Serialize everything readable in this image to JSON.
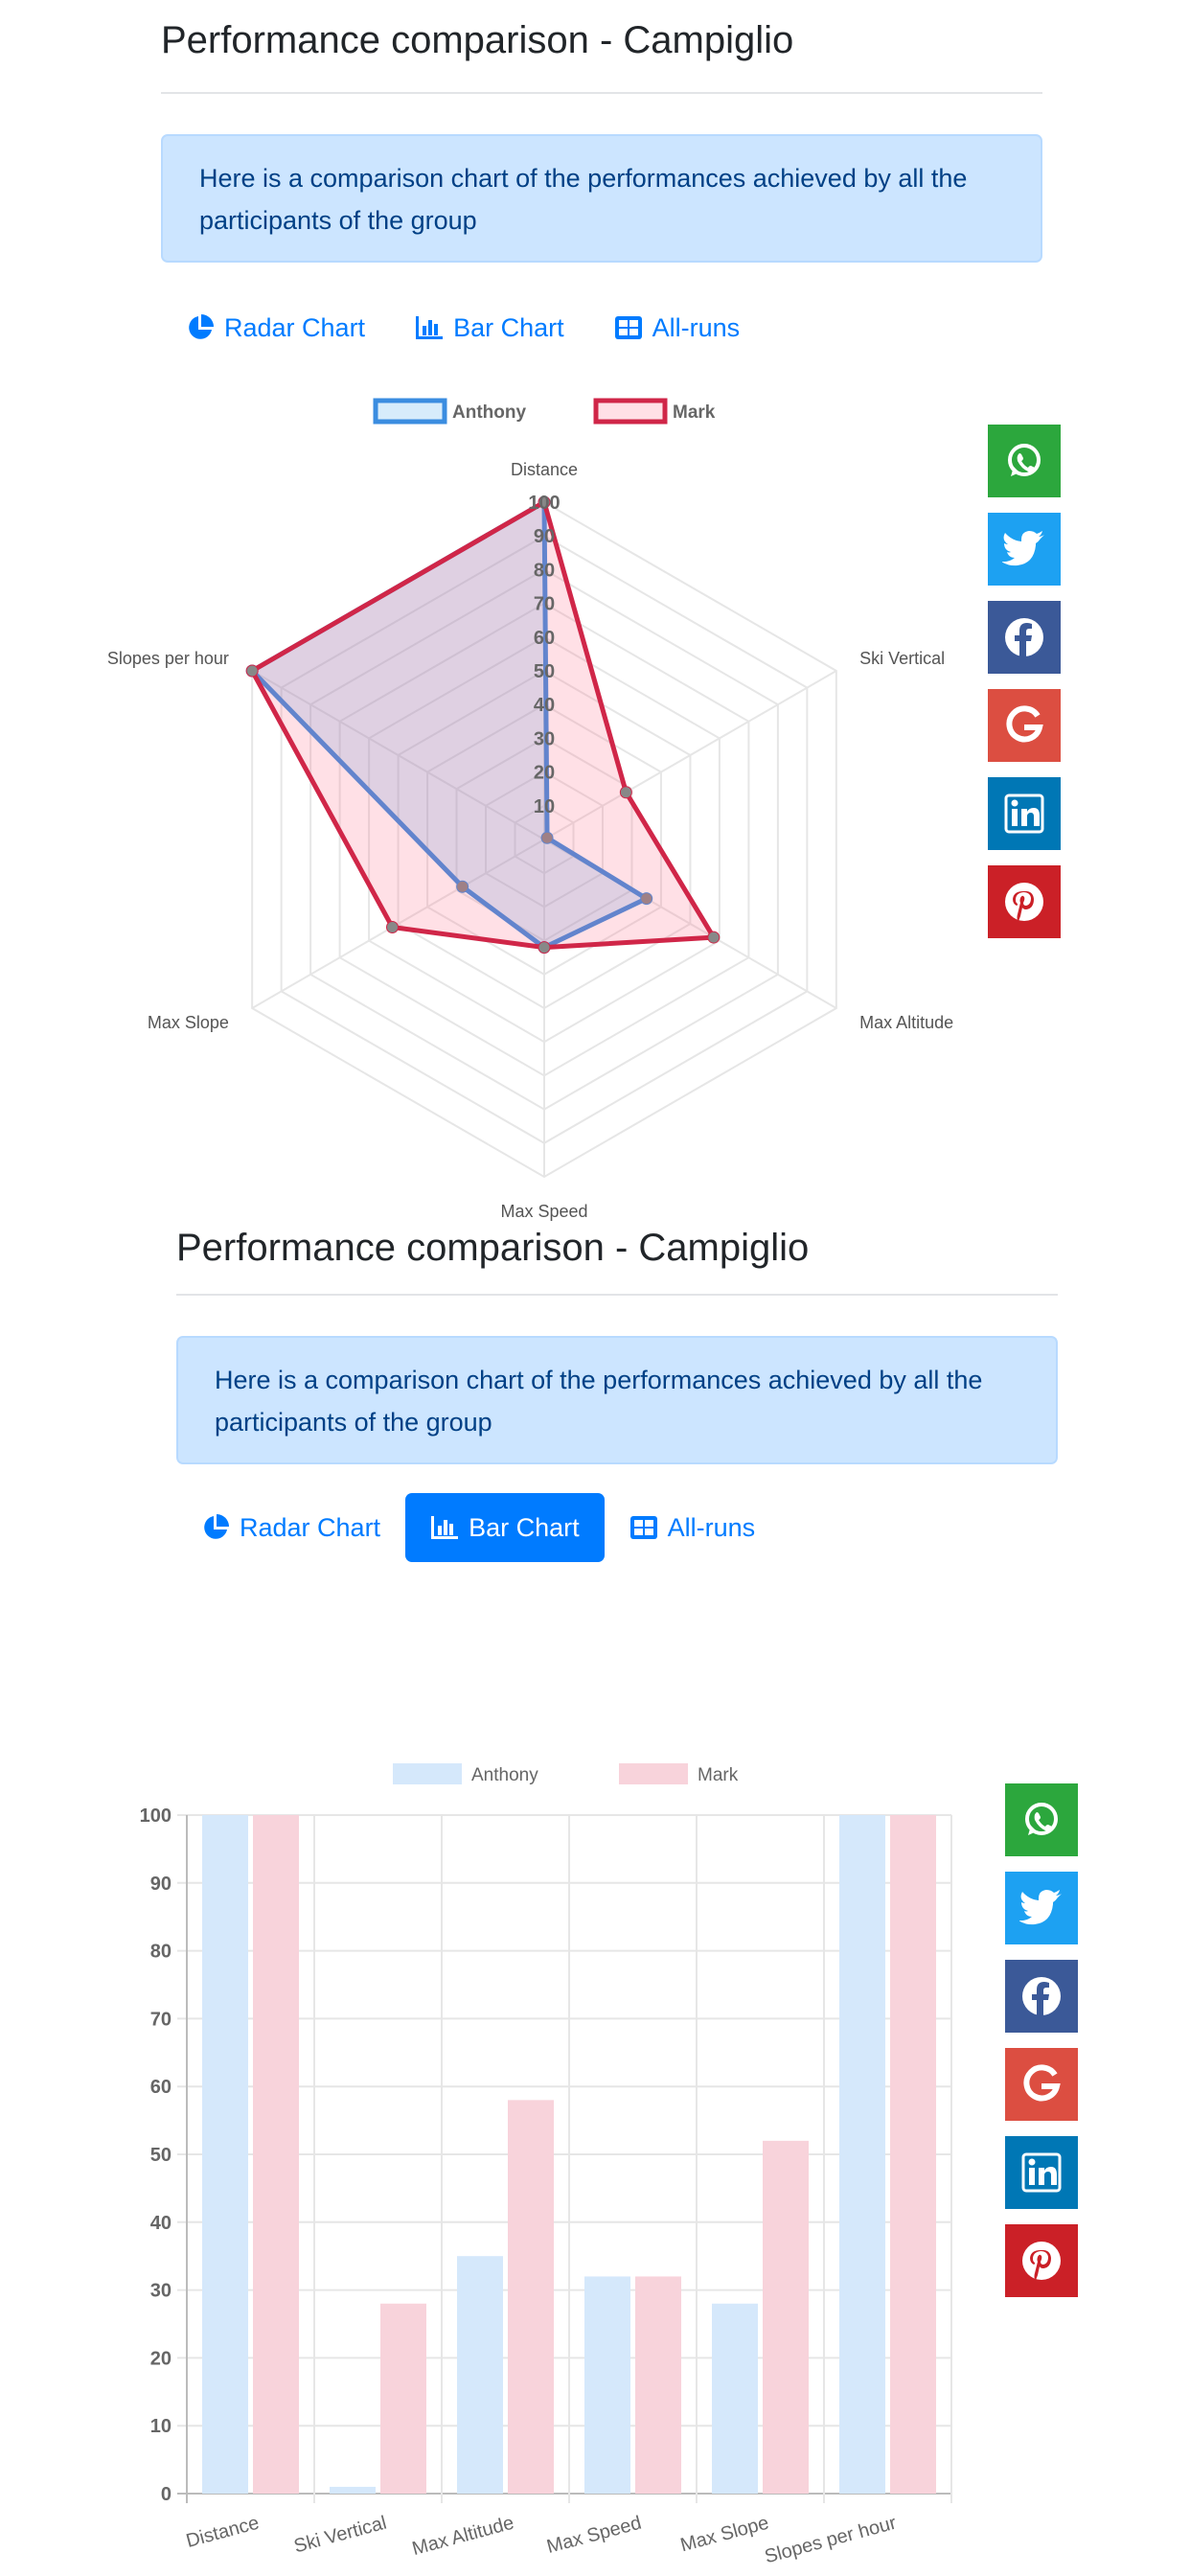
{
  "sections": [
    {
      "title": "Performance comparison - Campiglio",
      "info_text": "Here is a comparison chart of the performances achieved by all the participants of the group",
      "tabs": [
        {
          "label": "Radar Chart",
          "icon": "pie-chart-icon",
          "active": false
        },
        {
          "label": "Bar Chart",
          "icon": "bar-chart-icon",
          "active": false
        },
        {
          "label": "All-runs",
          "icon": "table-icon",
          "active": false
        }
      ]
    },
    {
      "title": "Performance comparison - Campiglio",
      "info_text": "Here is a comparison chart of the performances achieved by all the participants of the group",
      "tabs": [
        {
          "label": "Radar Chart",
          "icon": "pie-chart-icon",
          "active": false
        },
        {
          "label": "Bar Chart",
          "icon": "bar-chart-icon",
          "active": true
        },
        {
          "label": "All-runs",
          "icon": "table-icon",
          "active": false
        }
      ]
    }
  ],
  "share_buttons": [
    {
      "name": "whatsapp",
      "icon": "whatsapp-icon",
      "color": "#2ca73d"
    },
    {
      "name": "twitter",
      "icon": "twitter-icon",
      "color": "#1da1f2"
    },
    {
      "name": "facebook",
      "icon": "facebook-icon",
      "color": "#3b5998"
    },
    {
      "name": "google",
      "icon": "google-icon",
      "color": "#dc4e41"
    },
    {
      "name": "linkedin",
      "icon": "linkedin-icon",
      "color": "#0077b5"
    },
    {
      "name": "pinterest",
      "icon": "pinterest-icon",
      "color": "#cb2027"
    }
  ],
  "chart_data": [
    {
      "type": "radar",
      "categories": [
        "Distance",
        "Ski Vertical",
        "Max Altitude",
        "Max Speed",
        "Max Slope",
        "Slopes per hour"
      ],
      "rlim": [
        0,
        100
      ],
      "ticks": [
        10,
        20,
        30,
        40,
        50,
        60,
        70,
        80,
        90,
        100
      ],
      "legend_position": "top",
      "series": [
        {
          "name": "Anthony",
          "values": [
            100,
            1,
            35,
            32,
            28,
            100
          ],
          "border_color": "#3b8de0",
          "fill_color": "rgba(54,162,235,0.2)"
        },
        {
          "name": "Mark",
          "values": [
            100,
            28,
            58,
            32,
            52,
            100
          ],
          "border_color": "#d02648",
          "fill_color": "rgba(255,99,132,0.2)"
        }
      ]
    },
    {
      "type": "bar",
      "categories": [
        "Distance",
        "Ski Vertical",
        "Max Altitude",
        "Max Speed",
        "Max Slope",
        "Slopes per hour"
      ],
      "ylim": [
        0,
        100
      ],
      "yticks": [
        0,
        10,
        20,
        30,
        40,
        50,
        60,
        70,
        80,
        90,
        100
      ],
      "legend_position": "top",
      "grid": true,
      "series": [
        {
          "name": "Anthony",
          "values": [
            100,
            1,
            35,
            32,
            28,
            100
          ],
          "fill_color": "#d5e8fb"
        },
        {
          "name": "Mark",
          "values": [
            100,
            28,
            58,
            32,
            52,
            100
          ],
          "fill_color": "#f8d3db"
        }
      ]
    }
  ]
}
